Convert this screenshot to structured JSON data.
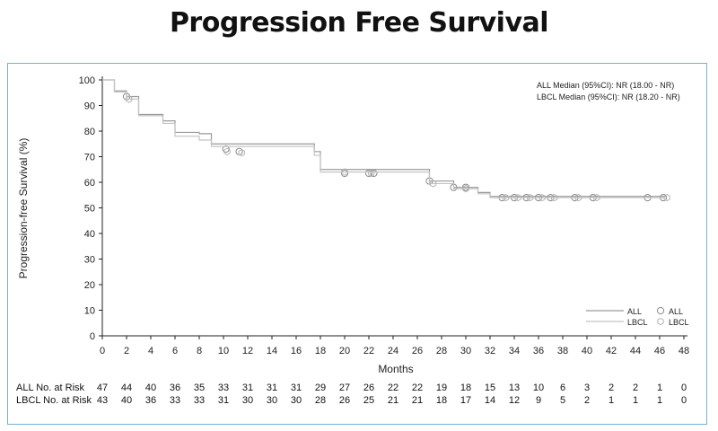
{
  "page": {
    "title": "Progression Free Survival"
  },
  "colors": {
    "frame": "#7ab0cf",
    "all_line": "#9a9a9a",
    "lbcl_line": "#c4c4c4",
    "axis": "#222222"
  },
  "chart_data": {
    "type": "line",
    "xlabel": "Months",
    "ylabel": "Progression-free Survival (%)",
    "xlim": [
      0,
      48
    ],
    "ylim": [
      0,
      100
    ],
    "x_ticks": [
      0,
      2,
      4,
      6,
      8,
      10,
      12,
      14,
      16,
      18,
      20,
      22,
      24,
      26,
      28,
      30,
      32,
      34,
      36,
      38,
      40,
      42,
      44,
      46,
      48
    ],
    "y_ticks": [
      0,
      10,
      20,
      30,
      40,
      50,
      60,
      70,
      80,
      90,
      100
    ],
    "annotations": [
      "ALL Median (95%CI): NR (18.00 - NR)",
      "LBCL Median (95%CI): NR (18.20 - NR)"
    ],
    "legend": {
      "placement": "bottom-right",
      "entries": [
        {
          "line_label": "ALL",
          "marker_label": "ALL",
          "series": "ALL"
        },
        {
          "line_label": "LBCL",
          "marker_label": "LBCL",
          "series": "LBCL"
        }
      ]
    },
    "series": [
      {
        "name": "ALL",
        "steps": [
          [
            0,
            100
          ],
          [
            1,
            95.7
          ],
          [
            2,
            93.5
          ],
          [
            3,
            86.5
          ],
          [
            5,
            84
          ],
          [
            6,
            79.5
          ],
          [
            8,
            79
          ],
          [
            9,
            75
          ],
          [
            17,
            75
          ],
          [
            17.5,
            72
          ],
          [
            18,
            65
          ],
          [
            26,
            65
          ],
          [
            27,
            60.5
          ],
          [
            29,
            58
          ],
          [
            31,
            56
          ],
          [
            32,
            54.5
          ],
          [
            46.5,
            54.5
          ]
        ],
        "censored": [
          [
            2,
            93.5
          ],
          [
            10.2,
            73
          ],
          [
            11.3,
            72
          ],
          [
            20,
            63.5
          ],
          [
            22,
            63.5
          ],
          [
            22.4,
            63.5
          ],
          [
            27,
            60.5
          ],
          [
            29,
            58
          ],
          [
            30,
            58
          ],
          [
            33,
            54
          ],
          [
            34,
            54
          ],
          [
            35,
            54
          ],
          [
            36,
            54
          ],
          [
            37,
            54
          ],
          [
            39,
            54
          ],
          [
            40.5,
            54
          ],
          [
            45,
            54
          ],
          [
            46.3,
            54
          ]
        ]
      },
      {
        "name": "LBCL",
        "steps": [
          [
            0,
            100
          ],
          [
            1,
            95.3
          ],
          [
            2,
            92.5
          ],
          [
            3,
            86
          ],
          [
            5,
            83
          ],
          [
            6,
            78
          ],
          [
            8,
            76.5
          ],
          [
            9,
            74
          ],
          [
            17,
            74
          ],
          [
            17.5,
            70.5
          ],
          [
            18,
            64
          ],
          [
            26,
            64
          ],
          [
            27,
            59.5
          ],
          [
            29,
            57.5
          ],
          [
            31,
            55.5
          ],
          [
            32,
            54
          ],
          [
            46.5,
            54
          ]
        ],
        "censored": [
          [
            2.2,
            92.5
          ],
          [
            10.3,
            72
          ],
          [
            11.5,
            71.5
          ],
          [
            20,
            64
          ],
          [
            22.2,
            63.5
          ],
          [
            27.3,
            59.5
          ],
          [
            30,
            57.5
          ],
          [
            33.3,
            54
          ],
          [
            34.3,
            54
          ],
          [
            35.3,
            54
          ],
          [
            36.3,
            54
          ],
          [
            37.3,
            54
          ],
          [
            39.3,
            54
          ],
          [
            40.8,
            54
          ],
          [
            46.6,
            54
          ]
        ]
      }
    ],
    "risk_table": {
      "times": [
        0,
        2,
        4,
        6,
        8,
        10,
        12,
        14,
        16,
        18,
        20,
        22,
        24,
        26,
        28,
        30,
        32,
        34,
        36,
        38,
        40,
        42,
        44,
        46,
        48
      ],
      "rows": [
        {
          "label": "ALL No. at Risk",
          "values": [
            47,
            44,
            40,
            36,
            35,
            33,
            31,
            31,
            31,
            29,
            27,
            26,
            22,
            22,
            19,
            18,
            15,
            13,
            10,
            6,
            3,
            2,
            2,
            1,
            0
          ]
        },
        {
          "label": "LBCL No. at Risk",
          "values": [
            43,
            40,
            36,
            33,
            33,
            31,
            30,
            30,
            30,
            28,
            26,
            25,
            21,
            21,
            18,
            17,
            14,
            12,
            9,
            5,
            2,
            1,
            1,
            1,
            0
          ]
        }
      ]
    }
  }
}
